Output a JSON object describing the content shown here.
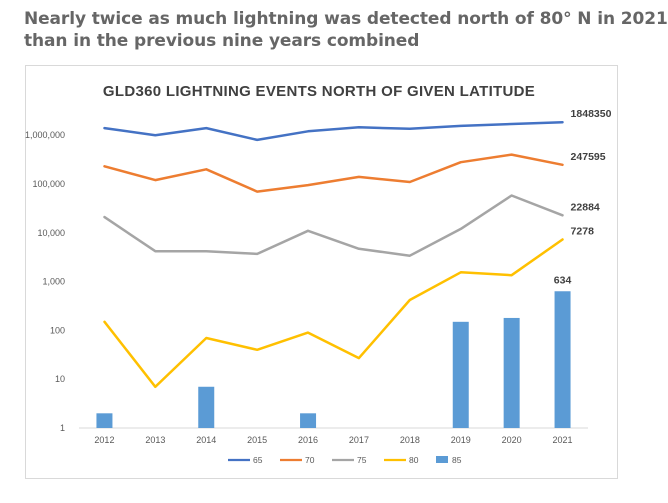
{
  "headline": {
    "line1": "Nearly twice as much lightning was detected north of 80° N in 2021",
    "line2": "than in the previous nine years combined"
  },
  "chart_data": {
    "type": "line",
    "title": "GLD360 LIGHTNING EVENTS NORTH OF GIVEN LATITUDE",
    "yscale": "log",
    "ylim": [
      1,
      10000000
    ],
    "y_ticks": [
      {
        "value": 1,
        "label": "1"
      },
      {
        "value": 10,
        "label": "10"
      },
      {
        "value": 100,
        "label": "100"
      },
      {
        "value": 1000,
        "label": "1,000"
      },
      {
        "value": 10000,
        "label": "10,000"
      },
      {
        "value": 100000,
        "label": "100,000"
      },
      {
        "value": 1000000,
        "label": "1,000,000"
      }
    ],
    "categories": [
      "2012",
      "2013",
      "2014",
      "2015",
      "2016",
      "2017",
      "2018",
      "2019",
      "2020",
      "2021"
    ],
    "grid": false,
    "legend_position": "bottom",
    "series": [
      {
        "name": "65",
        "type": "line",
        "color": "#4472c4",
        "values": [
          1400000,
          1000000,
          1400000,
          800000,
          1200000,
          1450000,
          1350000,
          1550000,
          1700000,
          1848350
        ],
        "end_label": "1848350"
      },
      {
        "name": "70",
        "type": "line",
        "color": "#ed7d31",
        "values": [
          230000,
          120000,
          200000,
          70000,
          95000,
          140000,
          110000,
          280000,
          400000,
          247595
        ],
        "end_label": "247595"
      },
      {
        "name": "75",
        "type": "line",
        "color": "#a5a5a5",
        "values": [
          21000,
          4200,
          4200,
          3700,
          11000,
          4700,
          3400,
          12000,
          58000,
          22884
        ],
        "end_label": "22884"
      },
      {
        "name": "80",
        "type": "line",
        "color": "#ffc000",
        "values": [
          150,
          7,
          70,
          40,
          90,
          27,
          420,
          1550,
          1350,
          7278
        ],
        "end_label": "7278"
      },
      {
        "name": "85",
        "type": "bar",
        "color": "#5b9bd5",
        "values": [
          2,
          0,
          7,
          0,
          2,
          0,
          0,
          150,
          180,
          634
        ],
        "end_label": "634"
      }
    ]
  }
}
